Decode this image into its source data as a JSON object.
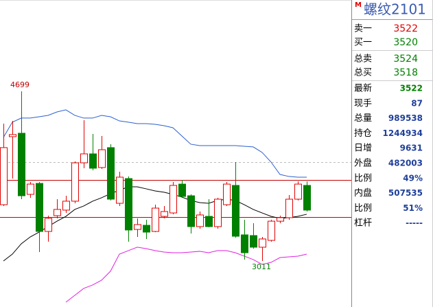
{
  "chart_data": {
    "type": "candlestick",
    "open": [
      3571,
      4248,
      4282,
      3674,
      3783,
      3305,
      3462,
      3517,
      3606,
      3988,
      4077,
      3941,
      4139,
      3585,
      3831,
      3325,
      3366,
      3305,
      3455,
      3489,
      3776,
      3660,
      3353,
      3455,
      3353,
      3571,
      3763,
      3271,
      3264,
      3148,
      3216,
      3407,
      3442,
      3626,
      3763
    ],
    "high": [
      4378,
      4405,
      4699,
      3797,
      3797,
      3462,
      3626,
      3660,
      4002,
      4412,
      4275,
      4255,
      4173,
      3899,
      3852,
      3435,
      3421,
      3571,
      3558,
      3797,
      3817,
      3674,
      3503,
      3626,
      3640,
      3797,
      3995,
      3421,
      3387,
      3250,
      3421,
      3462,
      3667,
      3804,
      3804
    ],
    "low": [
      3558,
      3831,
      3626,
      3640,
      3100,
      3203,
      3435,
      3489,
      3585,
      3934,
      3913,
      3927,
      3613,
      3558,
      3203,
      3250,
      3230,
      3298,
      3435,
      3476,
      3640,
      3284,
      3332,
      3346,
      3332,
      3558,
      3243,
      3025,
      3134,
      3011,
      3203,
      3387,
      3421,
      3613,
      3503
    ],
    "close": [
      4139,
      4269,
      3660,
      3776,
      3305,
      3435,
      3524,
      3606,
      3988,
      4077,
      3934,
      4118,
      3626,
      3845,
      3319,
      3373,
      3298,
      3537,
      3503,
      3763,
      3653,
      3353,
      3469,
      3353,
      3626,
      3776,
      3257,
      3093,
      3148,
      3230,
      3407,
      3442,
      3626,
      3776,
      3517
    ],
    "up_color": "#e00000",
    "down_color": "#008000",
    "series": [
      {
        "color": "#2b5fd0",
        "values": [
          4241,
          4392,
          4433,
          4433,
          4446,
          4460,
          4494,
          4515,
          4460,
          4433,
          4433,
          4460,
          4446,
          4405,
          4392,
          4378,
          4378,
          4371,
          4357,
          4337,
          4255,
          4173,
          4159,
          4159,
          4159,
          4159,
          4159,
          4152,
          4146,
          4091,
          3995,
          3872,
          3852,
          3845,
          3845
        ]
      },
      {
        "color": "#000000",
        "values": [
          3011,
          3079,
          3182,
          3250,
          3298,
          3353,
          3407,
          3455,
          3524,
          3558,
          3606,
          3640,
          3681,
          3715,
          3749,
          3749,
          3729,
          3708,
          3695,
          3674,
          3647,
          3613,
          3592,
          3585,
          3613,
          3626,
          3613,
          3571,
          3524,
          3489,
          3455,
          3435,
          3442,
          3455,
          3476
        ]
      },
      {
        "color": "#e020e0",
        "values": [
          null,
          null,
          null,
          null,
          null,
          null,
          null,
          2601,
          2669,
          2738,
          2772,
          2820,
          2909,
          3079,
          3114,
          3148,
          3134,
          3114,
          3100,
          3093,
          3093,
          3100,
          3107,
          3093,
          3114,
          3114,
          3093,
          3059,
          3025,
          2977,
          2997,
          3045,
          3052,
          3059,
          3079
        ]
      }
    ],
    "reference_lines": [
      {
        "value": 3817,
        "color": "#c00000",
        "dashed": false
      },
      {
        "value": 3448,
        "color": "#c00000",
        "dashed": false
      },
      {
        "value": 3995,
        "color": "#bbbbbb",
        "dashed": true
      }
    ],
    "ylim": [
      2553,
      5608
    ]
  },
  "panel": {
    "badge": "M",
    "title": "螺纹2101",
    "quotes": [
      {
        "label": "卖一",
        "value": 3522,
        "color": "#e00000"
      },
      {
        "label": "买一",
        "value": 3520,
        "color": "#008000"
      },
      {
        "label": "总卖",
        "value": 3524,
        "color": "#008000"
      },
      {
        "label": "总买",
        "value": 3518,
        "color": "#008000"
      }
    ],
    "stats": [
      {
        "label": "最新",
        "value": 3522,
        "color": "#008000"
      },
      {
        "label": "现手",
        "value": 87
      },
      {
        "label": "总量",
        "value": 989538
      },
      {
        "label": "持仓",
        "value": 1244934
      },
      {
        "label": "日增",
        "value": 9631
      },
      {
        "label": "外盘",
        "value": 482003
      },
      {
        "label": "比例",
        "value": "49%"
      },
      {
        "label": "内盘",
        "value": 507535
      },
      {
        "label": "比例",
        "value": "51%"
      },
      {
        "label": "杠杆",
        "value": "-----"
      }
    ]
  }
}
